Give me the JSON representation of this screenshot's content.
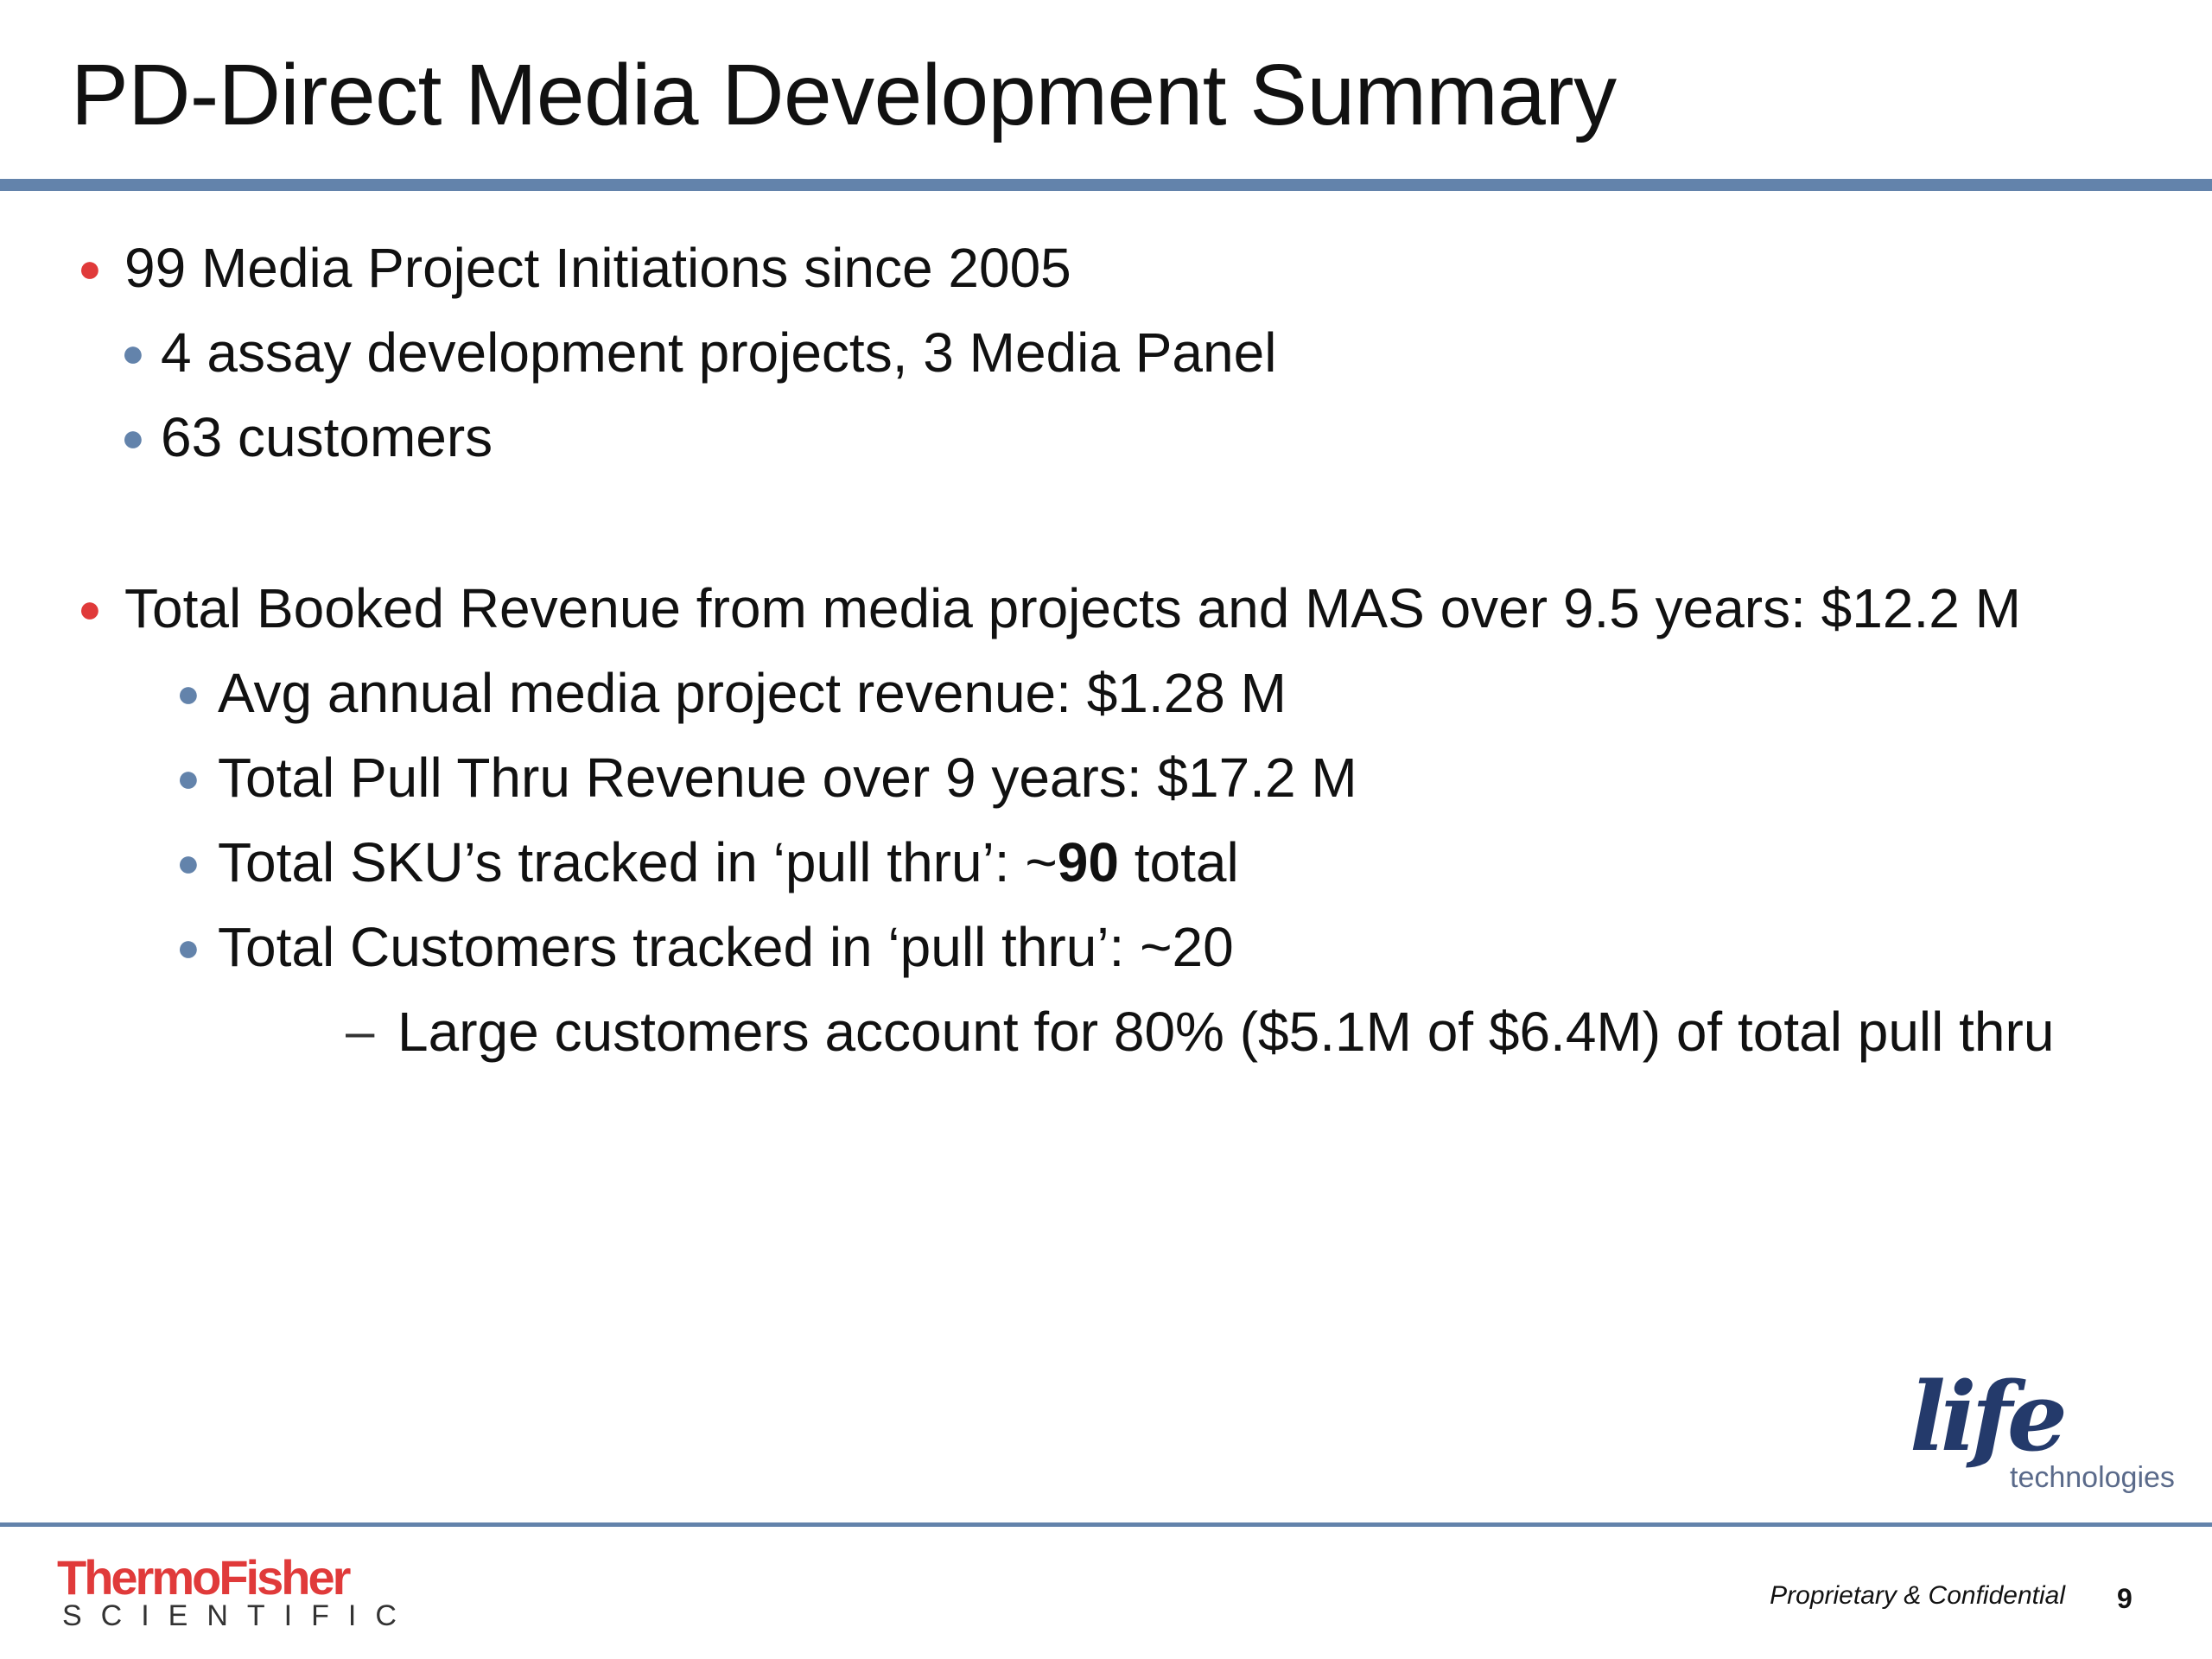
{
  "slide": {
    "title": "PD-Direct Media Development Summary",
    "page_number": "9",
    "footer": "Proprietary & Confidential"
  },
  "bullets": [
    {
      "level": 1,
      "text": "99 Media Project Initiations since 2005"
    },
    {
      "level": 2,
      "text": "4 assay development projects, 3 Media Panel"
    },
    {
      "level": 2,
      "text": "63 customers"
    },
    {
      "level": 1,
      "text": "Total Booked Revenue from media projects and MAS over 9.5 years: $12.2 M"
    },
    {
      "level": 3,
      "text": "Avg annual media project revenue: $1.28 M"
    },
    {
      "level": 3,
      "text": "Total Pull Thru Revenue over 9 years:  $17.2 M"
    },
    {
      "level": 3,
      "prefix": "Total SKU’s tracked in ‘pull thru’: ~",
      "bold": "90",
      "suffix": " total"
    },
    {
      "level": 3,
      "text": "Total Customers tracked in ‘pull thru’:  ~20"
    },
    {
      "level": 4,
      "text": "Large customers account for 80% ($5.1M of $6.4M) of total pull thru"
    }
  ],
  "logos": {
    "thermo_fisher_top": "ThermoFisher",
    "thermo_fisher_bottom": "SCIENTIFIC",
    "life_main": "life",
    "life_sub": "technologies"
  },
  "colors": {
    "accent_rule": "#6383ab",
    "level1_bullet": "#e03a3a",
    "level2_bullet": "#6383ab",
    "thermo_red": "#e03a3a",
    "life_navy": "#243a6b"
  },
  "icons": {
    "level1_marker": "bullet-dot-red",
    "level2_marker": "bullet-dot-blue",
    "level4_marker": "en-dash"
  }
}
